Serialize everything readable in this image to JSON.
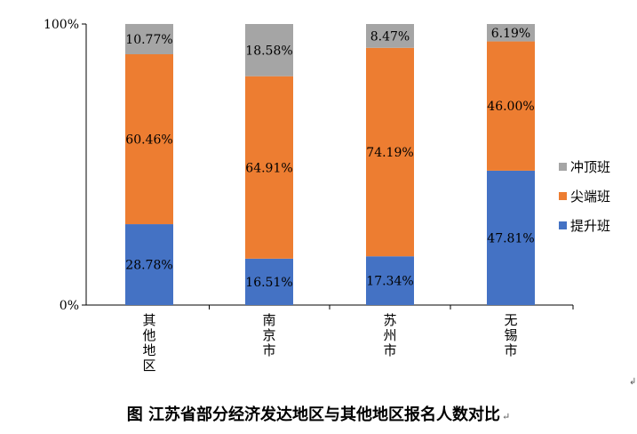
{
  "chart_data": {
    "type": "bar",
    "stacked": true,
    "percent": true,
    "categories": [
      "其他地区",
      "南京市",
      "苏州市",
      "无锡市"
    ],
    "series": [
      {
        "name": "提升班",
        "color": "#4472C4",
        "values": [
          28.78,
          16.51,
          17.34,
          47.81
        ],
        "labels": [
          "28.78%",
          "16.51%",
          "17.34%",
          "47.81%"
        ]
      },
      {
        "name": "尖端班",
        "color": "#ED7D31",
        "values": [
          60.46,
          64.91,
          74.19,
          46.0
        ],
        "labels": [
          "60.46%",
          "64.91%",
          "74.19%",
          "46.00%"
        ]
      },
      {
        "name": "冲顶班",
        "color": "#A5A5A5",
        "values": [
          10.77,
          18.58,
          8.47,
          6.19
        ],
        "labels": [
          "10.77%",
          "18.58%",
          "8.47%",
          "6.19%"
        ]
      }
    ],
    "ylim": [
      0,
      100
    ],
    "yticks": [
      "0%",
      "100%"
    ],
    "legend_position": "right",
    "title": "图  江苏省部分经济发达地区与其他地区报名人数对比"
  },
  "caption_mark": "↵",
  "corner_mark": "↲"
}
